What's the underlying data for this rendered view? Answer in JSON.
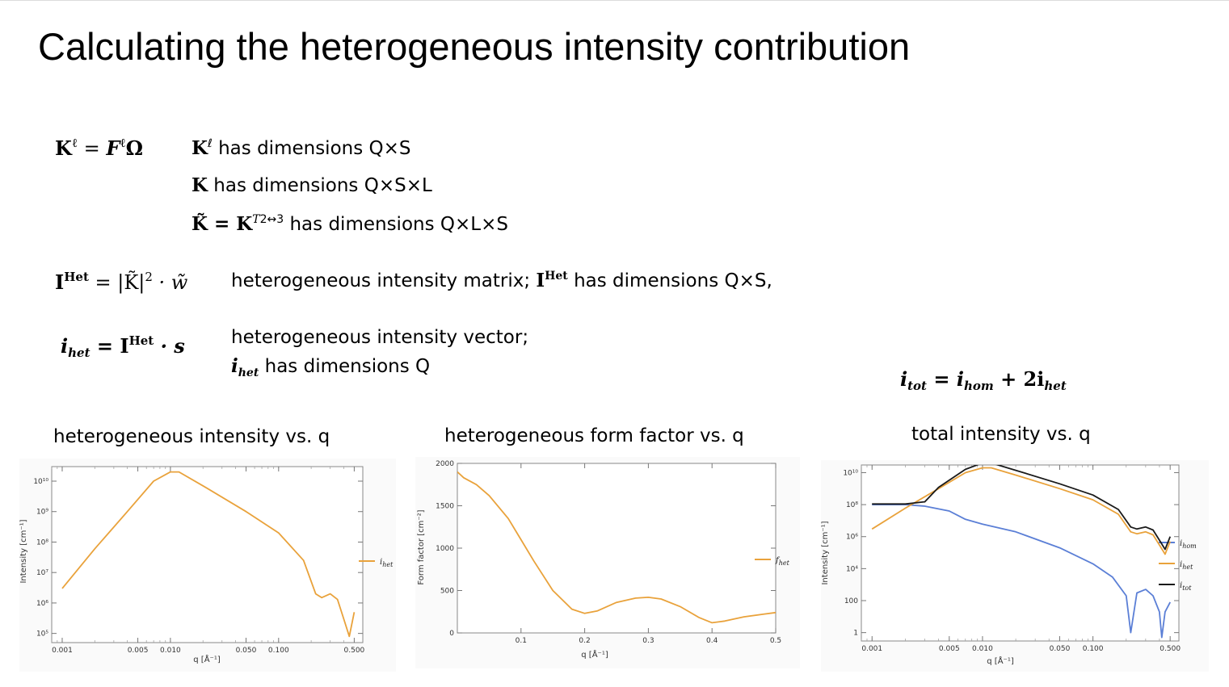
{
  "title": "Calculating the heterogeneous intensity contribution",
  "equations": {
    "k_ell_lhs": "K",
    "k_ell_sup": "ℓ",
    "k_ell_eq": " = ",
    "k_ell_rhs_f": "F",
    "k_ell_rhs_sup": "ℓ",
    "k_ell_rhs_omega": "Ω",
    "k_ell_desc_sym": "K",
    "k_ell_desc_sup": "ℓ",
    "k_ell_desc": " has dimensions Q×S",
    "k_desc_sym": "K",
    "k_desc": " has dimensions Q×S×L",
    "ktilde_sym": "K̃",
    "ktilde_eq": " = K",
    "ktilde_sup": "T",
    "ktilde_sub": "2↔3",
    "ktilde_desc": " has dimensions Q×L×S",
    "ihet_mat_lhs": "I",
    "ihet_mat_sup": "Het",
    "ihet_mat_rhs": " = |K̃|",
    "ihet_mat_sq": "2",
    "ihet_mat_w": " · w̃",
    "ihet_mat_desc_a": "heterogeneous intensity matrix; ",
    "ihet_mat_desc_sym": "I",
    "ihet_mat_desc_sup": "Het",
    "ihet_mat_desc_b": " has dimensions Q×S,",
    "ihet_vec_lhs": "i",
    "ihet_vec_sub": "het",
    "ihet_vec_eq": " = I",
    "ihet_vec_sup": "Het",
    "ihet_vec_s": " · s",
    "ihet_vec_desc1": "heterogeneous intensity vector;",
    "ihet_vec_desc2_sym": "i",
    "ihet_vec_desc2_sub": "het",
    "ihet_vec_desc2": " has dimensions Q",
    "itot_lhs": "i",
    "itot_sub": "tot",
    "itot_eq": " = i",
    "itot_sub2": "hom",
    "itot_plus": " + 2i",
    "itot_sub3": "het"
  },
  "panel_titles": [
    "heterogeneous intensity vs. q",
    "heterogeneous form factor vs. q",
    "total intensity vs. q"
  ],
  "colors": {
    "orange": "#e9a23b",
    "blue": "#5b7fd6",
    "black": "#1a1a1a",
    "axis": "#888888"
  },
  "chart_data": [
    {
      "type": "line",
      "title": "heterogeneous intensity vs. q",
      "xlabel": "q [Å⁻¹]",
      "ylabel": "Intensity [cm⁻¹]",
      "xscale": "log",
      "yscale": "log",
      "xlim": [
        0.0008,
        0.6
      ],
      "ylim": [
        50000,
        30000000000
      ],
      "xticks": [
        0.001,
        0.005,
        0.01,
        0.05,
        0.1,
        0.5
      ],
      "xtick_labels": [
        "0.001",
        "0.005",
        "0.010",
        "0.050",
        "0.100",
        "0.500"
      ],
      "yticks": [
        100000,
        1000000,
        10000000,
        100000000,
        1000000000,
        10000000000
      ],
      "ytick_labels": [
        "10⁵",
        "10⁶",
        "10⁷",
        "10⁸",
        "10⁹",
        "10¹⁰"
      ],
      "legend_position": "right",
      "series": [
        {
          "name": "ihet",
          "color": "#e9a23b",
          "x": [
            0.001,
            0.002,
            0.004,
            0.007,
            0.01,
            0.012,
            0.02,
            0.05,
            0.1,
            0.17,
            0.22,
            0.25,
            0.3,
            0.35,
            0.4,
            0.45,
            0.5
          ],
          "y": [
            3000000,
            60000000,
            1000000000,
            10000000000,
            20000000000,
            20000000000,
            7000000000,
            1000000000,
            200000000,
            25000000,
            2000000,
            1500000,
            2000000,
            1300000,
            300000,
            80000,
            500000
          ]
        }
      ]
    },
    {
      "type": "line",
      "title": "heterogeneous form factor vs. q",
      "xlabel": "q [Å⁻¹]",
      "ylabel": "Form factor [cm⁻²]",
      "xlim": [
        0.0,
        0.5
      ],
      "ylim": [
        0,
        2000
      ],
      "xticks": [
        0.1,
        0.2,
        0.3,
        0.4,
        0.5
      ],
      "xtick_labels": [
        "0.1",
        "0.2",
        "0.3",
        "0.4",
        "0.5"
      ],
      "yticks": [
        0,
        500,
        1000,
        1500,
        2000
      ],
      "ytick_labels": [
        "0",
        "500",
        "1000",
        "1500",
        "2000"
      ],
      "legend_position": "right",
      "series": [
        {
          "name": "fhet",
          "color": "#e9a23b",
          "x": [
            0.0,
            0.01,
            0.03,
            0.05,
            0.08,
            0.1,
            0.12,
            0.15,
            0.18,
            0.2,
            0.22,
            0.25,
            0.28,
            0.3,
            0.32,
            0.35,
            0.38,
            0.4,
            0.42,
            0.45,
            0.48,
            0.5
          ],
          "y": [
            1900,
            1830,
            1750,
            1620,
            1350,
            1100,
            850,
            500,
            280,
            230,
            260,
            360,
            410,
            420,
            400,
            310,
            180,
            120,
            140,
            190,
            220,
            240
          ]
        }
      ]
    },
    {
      "type": "line",
      "title": "total intensity vs. q",
      "xlabel": "q [Å⁻¹]",
      "ylabel": "Intensity [cm⁻¹]",
      "xscale": "log",
      "yscale": "log",
      "xlim": [
        0.0008,
        0.6
      ],
      "ylim": [
        0.3,
        30000000000
      ],
      "xticks": [
        0.001,
        0.005,
        0.01,
        0.05,
        0.1,
        0.5
      ],
      "xtick_labels": [
        "0.001",
        "0.005",
        "0.010",
        "0.050",
        "0.100",
        "0.500"
      ],
      "yticks": [
        1,
        100,
        10000,
        1000000,
        100000000,
        10000000000
      ],
      "ytick_labels": [
        "1",
        "100",
        "10⁴",
        "10⁶",
        "10⁸",
        "10¹⁰"
      ],
      "legend_position": "right",
      "series": [
        {
          "name": "ihom",
          "color": "#5b7fd6",
          "x": [
            0.001,
            0.002,
            0.003,
            0.005,
            0.007,
            0.01,
            0.02,
            0.05,
            0.1,
            0.15,
            0.2,
            0.22,
            0.25,
            0.3,
            0.35,
            0.4,
            0.42,
            0.45,
            0.5
          ],
          "y": [
            100000000,
            100000000,
            80000000,
            40000000,
            12000000,
            6000000,
            2000000,
            200000,
            20000,
            3000,
            200,
            1,
            300,
            500,
            200,
            20,
            0.5,
            20,
            80
          ]
        },
        {
          "name": "ihet",
          "color": "#e9a23b",
          "x": [
            0.001,
            0.002,
            0.004,
            0.007,
            0.01,
            0.012,
            0.02,
            0.05,
            0.1,
            0.17,
            0.22,
            0.25,
            0.3,
            0.35,
            0.4,
            0.45,
            0.5
          ],
          "y": [
            3000000,
            60000000,
            1000000000,
            10000000000,
            20000000000,
            20000000000,
            7000000000,
            1000000000,
            200000000,
            25000000,
            2000000,
            1500000,
            2000000,
            1300000,
            300000,
            80000,
            500000
          ]
        },
        {
          "name": "itot",
          "color": "#1a1a1a",
          "x": [
            0.001,
            0.002,
            0.003,
            0.004,
            0.007,
            0.01,
            0.012,
            0.02,
            0.05,
            0.1,
            0.17,
            0.22,
            0.25,
            0.3,
            0.35,
            0.4,
            0.45,
            0.5
          ],
          "y": [
            110000000,
            110000000,
            150000000,
            1200000000,
            16000000000,
            40000000000,
            40000000000,
            14000000000,
            2000000000,
            400000000,
            50000000,
            4000000,
            3000000,
            4000000,
            2600000,
            600000,
            160000,
            1000000
          ]
        }
      ]
    }
  ],
  "legend_labels": {
    "p1": [
      {
        "base": "i",
        "sub": "het"
      }
    ],
    "p2": [
      {
        "base": "f",
        "sub": "het"
      }
    ],
    "p3": [
      {
        "base": "i",
        "sub": "hom"
      },
      {
        "base": "i",
        "sub": "het"
      },
      {
        "base": "i",
        "sub": "tot"
      }
    ]
  }
}
